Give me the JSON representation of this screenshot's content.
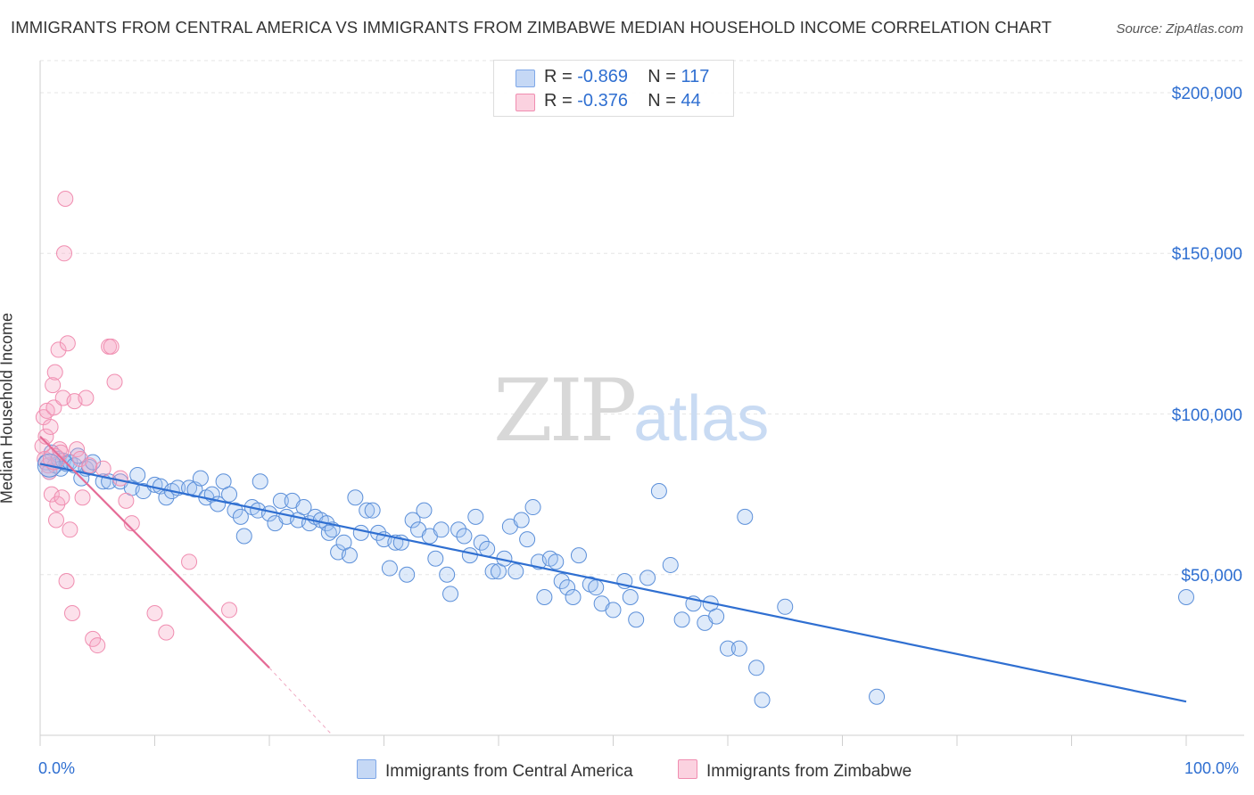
{
  "header": {
    "title": "IMMIGRANTS FROM CENTRAL AMERICA VS IMMIGRANTS FROM ZIMBABWE MEDIAN HOUSEHOLD INCOME CORRELATION CHART",
    "source": "Source: ZipAtlas.com"
  },
  "watermark": {
    "zip": "ZIP",
    "atlas": "atlas"
  },
  "legend": {
    "rows": [
      {
        "r_label": "R = ",
        "r_value": "-0.869",
        "n_label": "N = ",
        "n_value": "117",
        "color": "#7ea7e8"
      },
      {
        "r_label": "R = ",
        "r_value": "-0.376",
        "n_label": "N = ",
        "n_value": "44",
        "color": "#f08db0"
      }
    ]
  },
  "bottom_legend": {
    "central_america": "Immigrants from Central America",
    "zimbabwe": "Immigrants from Zimbabwe"
  },
  "chart_data": {
    "type": "scatter",
    "title": "IMMIGRANTS FROM CENTRAL AMERICA VS IMMIGRANTS FROM ZIMBABWE MEDIAN HOUSEHOLD INCOME CORRELATION CHART",
    "xlabel": "",
    "ylabel": "Median Household Income",
    "xlim": [
      0,
      100
    ],
    "ylim": [
      0,
      210000
    ],
    "x_tick_labels": [
      "0.0%",
      "100.0%"
    ],
    "y_ticks": [
      50000,
      100000,
      150000,
      200000
    ],
    "y_tick_labels": [
      "$50,000",
      "$100,000",
      "$150,000",
      "$200,000"
    ],
    "grid": true,
    "legend_position": "top-center",
    "series": [
      {
        "name": "Immigrants from Central America",
        "color": "#5b8fd9",
        "points": [
          [
            0.5,
            85000
          ],
          [
            0.8,
            82000
          ],
          [
            1.0,
            88000
          ],
          [
            1.3,
            84000
          ],
          [
            1.6,
            86000
          ],
          [
            1.8,
            83000
          ],
          [
            2.0,
            85500
          ],
          [
            2.3,
            84500
          ],
          [
            2.6,
            85000
          ],
          [
            3.0,
            84000
          ],
          [
            3.3,
            87000
          ],
          [
            3.6,
            80000
          ],
          [
            4.0,
            83000
          ],
          [
            4.3,
            83500
          ],
          [
            4.6,
            85000
          ],
          [
            5.5,
            79000
          ],
          [
            6.0,
            79000
          ],
          [
            7.0,
            79000
          ],
          [
            8.0,
            77000
          ],
          [
            8.5,
            81000
          ],
          [
            9.0,
            76000
          ],
          [
            10,
            78000
          ],
          [
            10.5,
            77500
          ],
          [
            11,
            74000
          ],
          [
            11.5,
            76000
          ],
          [
            12,
            77000
          ],
          [
            13,
            77000
          ],
          [
            13.5,
            76500
          ],
          [
            14,
            80000
          ],
          [
            14.5,
            74000
          ],
          [
            15,
            75000
          ],
          [
            15.5,
            72000
          ],
          [
            16,
            79000
          ],
          [
            16.5,
            75000
          ],
          [
            17,
            70000
          ],
          [
            17.5,
            68000
          ],
          [
            17.8,
            62000
          ],
          [
            18.5,
            71000
          ],
          [
            19,
            70000
          ],
          [
            19.2,
            79000
          ],
          [
            20,
            69000
          ],
          [
            20.5,
            66000
          ],
          [
            21,
            73000
          ],
          [
            21.5,
            68000
          ],
          [
            22,
            73000
          ],
          [
            22.5,
            67000
          ],
          [
            23,
            71000
          ],
          [
            23.5,
            66000
          ],
          [
            24,
            68000
          ],
          [
            24.5,
            67000
          ],
          [
            25,
            66000
          ],
          [
            25.2,
            63000
          ],
          [
            25.5,
            64000
          ],
          [
            26,
            57000
          ],
          [
            26.5,
            60000
          ],
          [
            27,
            56000
          ],
          [
            27.5,
            74000
          ],
          [
            28,
            63000
          ],
          [
            28.5,
            70000
          ],
          [
            29,
            70000
          ],
          [
            29.5,
            63000
          ],
          [
            30,
            61000
          ],
          [
            30.5,
            52000
          ],
          [
            31,
            60000
          ],
          [
            31.5,
            60000
          ],
          [
            32,
            50000
          ],
          [
            32.5,
            67000
          ],
          [
            33,
            64000
          ],
          [
            33.5,
            70000
          ],
          [
            34,
            62000
          ],
          [
            34.5,
            55000
          ],
          [
            35,
            64000
          ],
          [
            35.5,
            50000
          ],
          [
            35.8,
            44000
          ],
          [
            36.5,
            64000
          ],
          [
            37,
            62000
          ],
          [
            37.5,
            56000
          ],
          [
            38,
            68000
          ],
          [
            38.5,
            60000
          ],
          [
            39,
            58000
          ],
          [
            39.5,
            51000
          ],
          [
            40,
            51000
          ],
          [
            40.5,
            55000
          ],
          [
            41,
            65000
          ],
          [
            41.5,
            51000
          ],
          [
            42,
            67000
          ],
          [
            42.5,
            61000
          ],
          [
            43,
            71000
          ],
          [
            43.5,
            54000
          ],
          [
            44,
            43000
          ],
          [
            44.5,
            55000
          ],
          [
            45,
            54000
          ],
          [
            45.5,
            48000
          ],
          [
            46,
            46000
          ],
          [
            46.5,
            43000
          ],
          [
            47,
            56000
          ],
          [
            48,
            47000
          ],
          [
            48.5,
            46000
          ],
          [
            49,
            41000
          ],
          [
            50,
            39000
          ],
          [
            51,
            48000
          ],
          [
            51.5,
            43000
          ],
          [
            52,
            36000
          ],
          [
            53,
            49000
          ],
          [
            54,
            76000
          ],
          [
            55,
            53000
          ],
          [
            56,
            36000
          ],
          [
            57,
            41000
          ],
          [
            58,
            35000
          ],
          [
            58.5,
            41000
          ],
          [
            59,
            37000
          ],
          [
            60,
            27000
          ],
          [
            61,
            27000
          ],
          [
            61.5,
            68000
          ],
          [
            62.5,
            21000
          ],
          [
            63,
            11000
          ],
          [
            65,
            40000
          ],
          [
            73,
            12000
          ],
          [
            100,
            43000
          ]
        ]
      },
      {
        "name": "Immigrants from Zimbabwe",
        "color": "#f08db0",
        "points": [
          [
            0.2,
            90000
          ],
          [
            0.3,
            99000
          ],
          [
            0.4,
            86000
          ],
          [
            0.5,
            93000
          ],
          [
            0.6,
            101000
          ],
          [
            0.7,
            84000
          ],
          [
            0.8,
            82000
          ],
          [
            0.9,
            96000
          ],
          [
            1.0,
            75000
          ],
          [
            1.1,
            109000
          ],
          [
            1.2,
            102000
          ],
          [
            1.3,
            113000
          ],
          [
            1.4,
            67000
          ],
          [
            1.5,
            72000
          ],
          [
            1.6,
            120000
          ],
          [
            1.7,
            89000
          ],
          [
            1.8,
            88000
          ],
          [
            1.9,
            74000
          ],
          [
            2.0,
            105000
          ],
          [
            2.1,
            150000
          ],
          [
            2.2,
            167000
          ],
          [
            2.3,
            48000
          ],
          [
            2.4,
            122000
          ],
          [
            2.6,
            64000
          ],
          [
            2.8,
            38000
          ],
          [
            3.0,
            104000
          ],
          [
            3.2,
            89000
          ],
          [
            3.5,
            86000
          ],
          [
            3.7,
            74000
          ],
          [
            4.0,
            105000
          ],
          [
            4.3,
            84000
          ],
          [
            4.6,
            30000
          ],
          [
            5.0,
            28000
          ],
          [
            5.5,
            83000
          ],
          [
            6.0,
            121000
          ],
          [
            6.2,
            121000
          ],
          [
            6.5,
            110000
          ],
          [
            7.0,
            80000
          ],
          [
            7.5,
            73000
          ],
          [
            8.0,
            66000
          ],
          [
            10,
            38000
          ],
          [
            11,
            32000
          ],
          [
            13,
            54000
          ],
          [
            16.5,
            39000
          ]
        ]
      }
    ],
    "trendlines": [
      {
        "series": "Immigrants from Central America",
        "x": [
          0,
          100
        ],
        "y": [
          84500,
          10500
        ],
        "style": "solid"
      },
      {
        "series": "Immigrants from Zimbabwe",
        "x": [
          0,
          20
        ],
        "y": [
          93000,
          21000
        ],
        "style": "solid"
      },
      {
        "series": "Immigrants from Zimbabwe",
        "x": [
          20,
          25.5
        ],
        "y": [
          21000,
          0
        ],
        "style": "dashed"
      }
    ]
  }
}
